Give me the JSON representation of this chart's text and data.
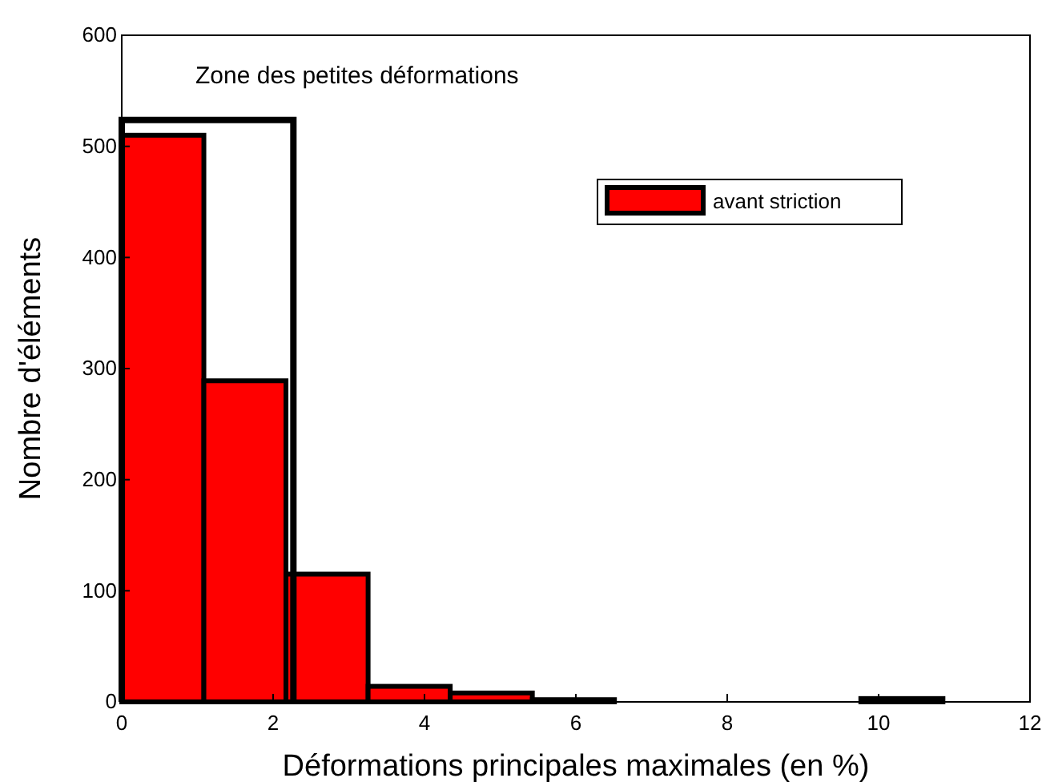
{
  "chart_data": {
    "type": "histogram",
    "xlabel": "Déformations principales maximales (en %)",
    "ylabel": "Nombre d'éléments",
    "bins": [
      0,
      1.085,
      2.17,
      3.255,
      4.34,
      5.425,
      6.51,
      7.595,
      8.68,
      9.765,
      10.85
    ],
    "series": [
      {
        "name": "avant striction",
        "color": "#ff0000",
        "values": [
          510,
          289,
          115,
          14,
          8,
          2,
          0,
          0,
          0,
          3
        ]
      }
    ],
    "xlim": [
      0,
      12
    ],
    "xticks": [
      0,
      2,
      4,
      6,
      8,
      10,
      12
    ],
    "ylim": [
      0,
      600
    ],
    "yticks": [
      0,
      100,
      200,
      300,
      400,
      500,
      600
    ],
    "annotations": [
      "Zone des petites déformations"
    ],
    "grid": false,
    "legend": "top right"
  }
}
